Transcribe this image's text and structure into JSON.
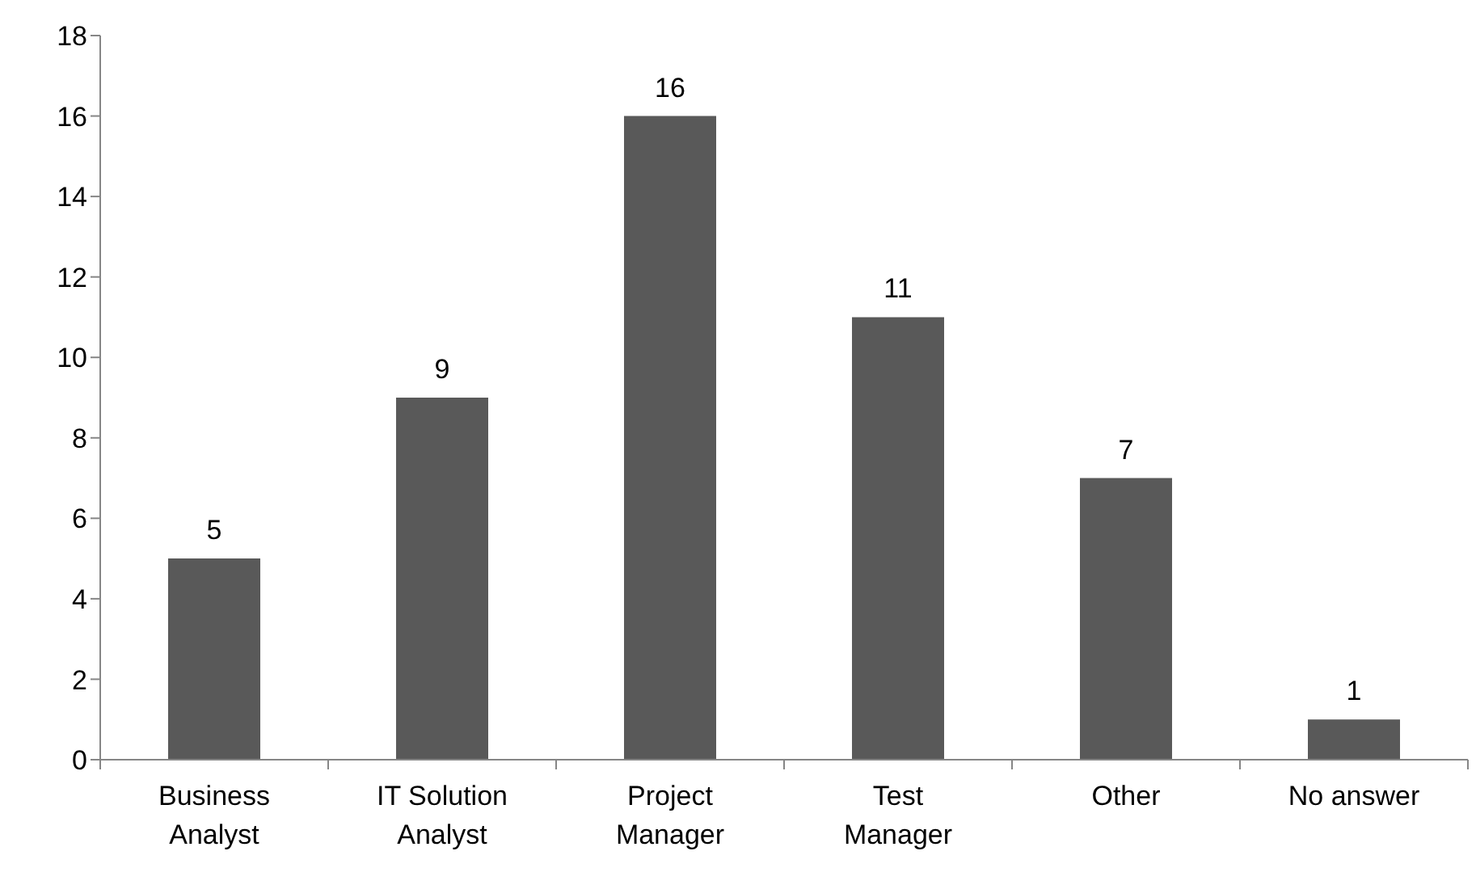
{
  "chart_data": {
    "type": "bar",
    "categories": [
      "Business Analyst",
      "IT Solution Analyst",
      "Project Manager",
      "Test Manager",
      "Other",
      "No answer"
    ],
    "values": [
      5,
      9,
      16,
      11,
      7,
      1
    ],
    "color": "#595959",
    "ylim": [
      0,
      18
    ],
    "yticks": [
      0,
      2,
      4,
      6,
      8,
      10,
      12,
      14,
      16,
      18
    ],
    "data_labels": true,
    "grid": false
  }
}
